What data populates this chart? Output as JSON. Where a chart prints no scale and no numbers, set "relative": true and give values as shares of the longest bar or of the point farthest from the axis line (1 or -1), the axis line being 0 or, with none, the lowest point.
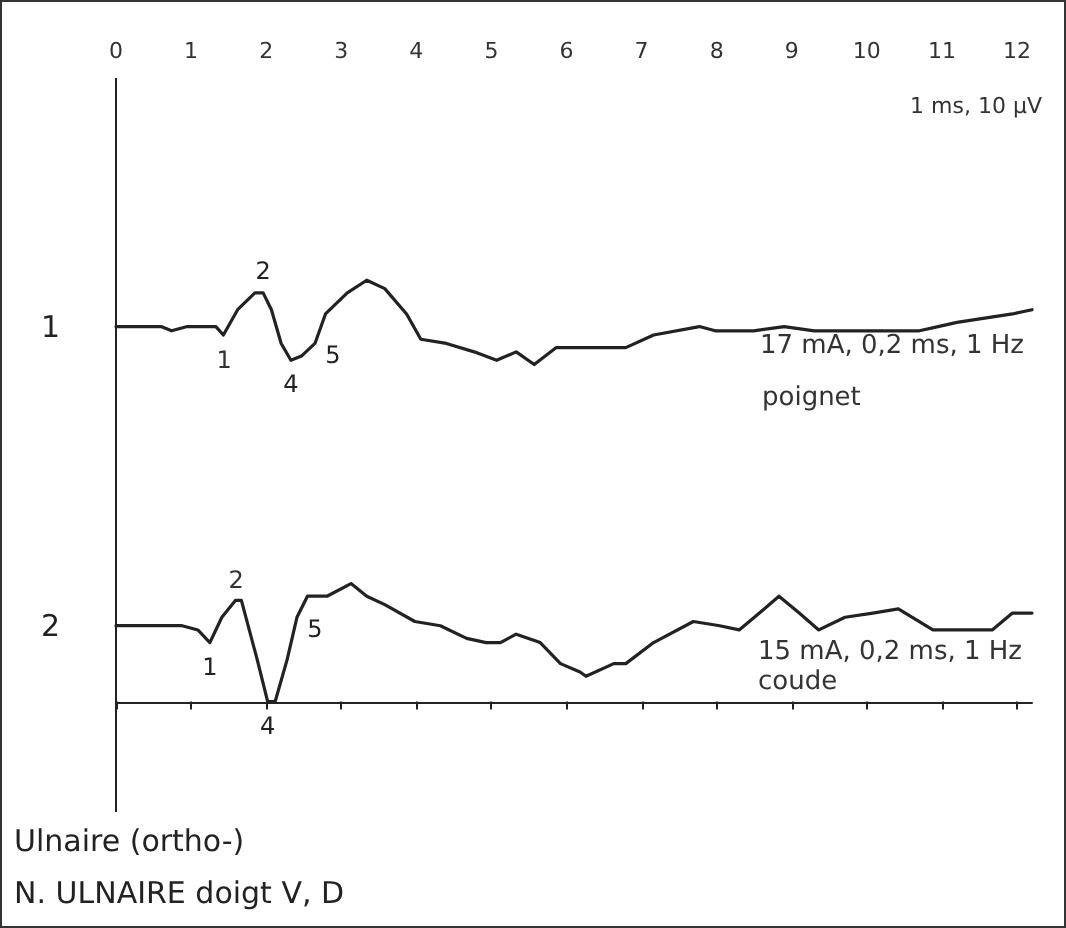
{
  "chart_data": {
    "type": "line",
    "title": "Ulnaire (ortho-)",
    "subtitle": "N. ULNAIRE doigt V, D",
    "relative": true,
    "xlim": [
      0,
      12.2
    ],
    "xticks": [
      0,
      1,
      2,
      3,
      4,
      5,
      6,
      7,
      8,
      9,
      10,
      11,
      12
    ],
    "legend": false,
    "marker": "none",
    "line_style": "solid",
    "series": [
      {
        "name": "1",
        "color": "#222222",
        "x": [
          0,
          0.6,
          0.74,
          0.95,
          1.33,
          1.43,
          1.62,
          1.85,
          1.96,
          2.07,
          2.2,
          2.33,
          2.47,
          2.65,
          2.79,
          3.08,
          3.34,
          3.58,
          3.87,
          4.06,
          4.4,
          4.77,
          5.07,
          5.33,
          5.57,
          5.86,
          6.18,
          6.79,
          7.16,
          7.77,
          7.98,
          8.49,
          8.9,
          9.3,
          9.8,
          10.7,
          10.95,
          11.2,
          11.57,
          11.94,
          12.2
        ],
        "values": [
          0.89,
          0.89,
          0.88,
          0.89,
          0.89,
          0.87,
          0.93,
          0.97,
          0.97,
          0.93,
          0.85,
          0.81,
          0.82,
          0.85,
          0.92,
          0.97,
          1.0,
          0.98,
          0.92,
          0.86,
          0.85,
          0.83,
          0.81,
          0.83,
          0.8,
          0.84,
          0.84,
          0.84,
          0.87,
          0.89,
          0.88,
          0.88,
          0.89,
          0.88,
          0.88,
          0.88,
          0.89,
          0.9,
          0.91,
          0.92,
          0.93
        ]
      },
      {
        "name": "2",
        "color": "#222222",
        "x": [
          0,
          0.88,
          1.09,
          1.25,
          1.41,
          1.59,
          1.67,
          1.88,
          2.02,
          2.12,
          2.28,
          2.41,
          2.55,
          2.81,
          3.13,
          3.34,
          3.58,
          3.98,
          4.32,
          4.67,
          4.93,
          5.12,
          5.33,
          5.65,
          5.92,
          6.18,
          6.26,
          6.63,
          6.79,
          7.16,
          7.69,
          8.04,
          8.3,
          8.57,
          8.83,
          9.1,
          9.36,
          9.71,
          10.08,
          10.42,
          10.88,
          11.67,
          11.94,
          12.2
        ],
        "values": [
          0.18,
          0.18,
          0.17,
          0.14,
          0.2,
          0.24,
          0.24,
          0.1,
          0,
          0,
          0.1,
          0.2,
          0.25,
          0.25,
          0.28,
          0.25,
          0.23,
          0.19,
          0.18,
          0.15,
          0.14,
          0.14,
          0.16,
          0.14,
          0.09,
          0.07,
          0.06,
          0.09,
          0.09,
          0.14,
          0.19,
          0.18,
          0.17,
          0.21,
          0.25,
          0.21,
          0.17,
          0.2,
          0.21,
          0.22,
          0.17,
          0.17,
          0.21,
          0.21
        ]
      }
    ],
    "annotations": [
      "1 ms, 10 µV",
      {
        "text": "2",
        "x": 1.96,
        "y": 0.97
      },
      "1",
      {
        "text": "4",
        "x": 2.33,
        "y": 0.81
      },
      {
        "text": "5",
        "x": 2.65,
        "y": 0.85
      },
      "17 mA, 0,2 ms, 1 Hz",
      "poignet",
      "2",
      {
        "text": "1",
        "x": 1.25,
        "y": 0.14
      },
      {
        "text": "4",
        "x": 2.02,
        "y": 0
      },
      {
        "text": "5",
        "x": 2.41,
        "y": 0.2
      },
      "15 mA, 0,2 ms, 1 Hz",
      "coude"
    ]
  }
}
